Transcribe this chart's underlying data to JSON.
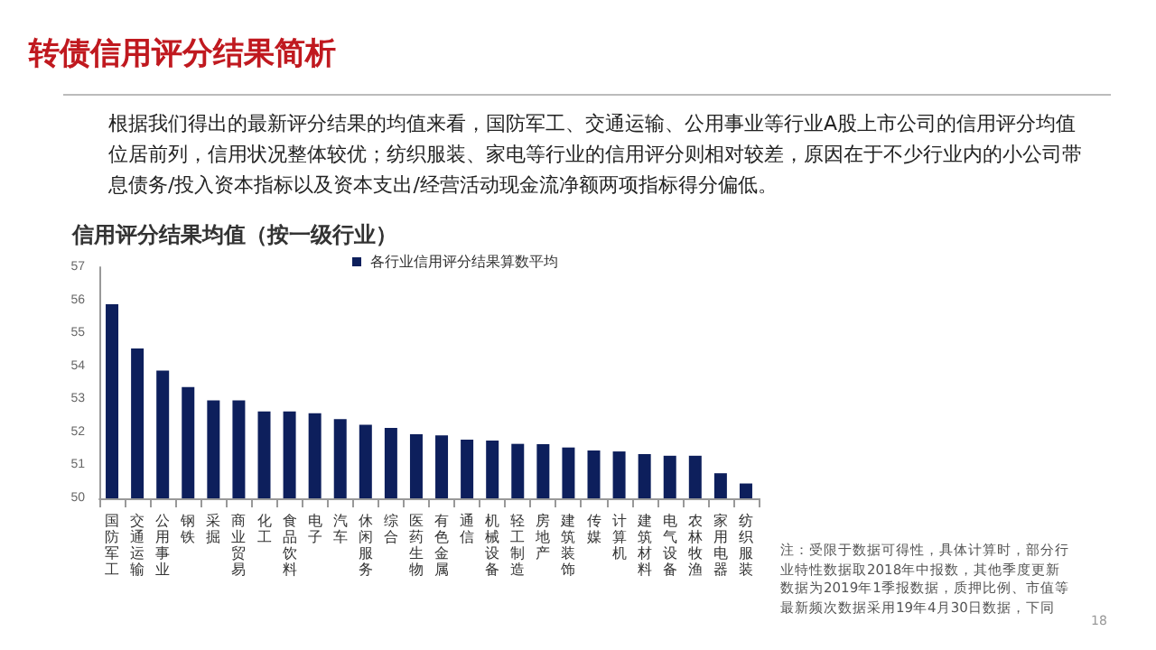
{
  "chart_data": {
    "type": "bar",
    "title": "转债信用评分结果简析",
    "subtitle": "根据我们得出的最新评分结果的均值来看，国防军工、交通运输、公用事业等行业A股上市公司的信用评分均值位居前列，信用状况整体较优；纺织服装、家电等行业的信用评分则相对较差，原因在于不少行业内的小公司带息债务/投入资本指标以及资本支出/经营活动现金流净额两项指标得分偏低。",
    "xlabel": "信用评分结果均值（按一级行业）",
    "categories": [
      "国防军工",
      "交通运输",
      "公用事业",
      "钢铁",
      "采掘",
      "商业贸易",
      "化工",
      "食品饮料",
      "电子",
      "汽车",
      "休闲服务",
      "综合",
      "医药生物",
      "有色金属",
      "通信",
      "机械设备",
      "轻工制造",
      "房地产",
      "建筑装饰",
      "传媒",
      "计算机",
      "建筑材料",
      "电气设备",
      "农林牧渔",
      "家用电器",
      "纺织服装"
    ],
    "series": [
      {
        "name": "各行业信用评分结果算数平均",
        "color": "#0d1f5c",
        "values": [
          55.88,
          54.54,
          53.87,
          53.37,
          52.97,
          52.97,
          52.63,
          52.63,
          52.58,
          52.4,
          52.23,
          52.13,
          51.94,
          51.91,
          51.78,
          51.75,
          51.65,
          51.64,
          51.54,
          51.45,
          51.42,
          51.34,
          51.29,
          51.29,
          50.76,
          50.45
        ]
      }
    ],
    "ylim": [
      50,
      57
    ],
    "yticks": [
      50,
      51,
      52,
      53,
      54,
      55,
      56,
      57
    ],
    "grid": false,
    "legend": "top",
    "annotations": [
      "注：受限于数据可得性，具体计算时，部分行业特性数据取2018年中报数，其他季度更新数据为2019年1季报数据，质押比例、市值等最新频次数据采用19年4月30日数据，下同",
      "18"
    ]
  }
}
